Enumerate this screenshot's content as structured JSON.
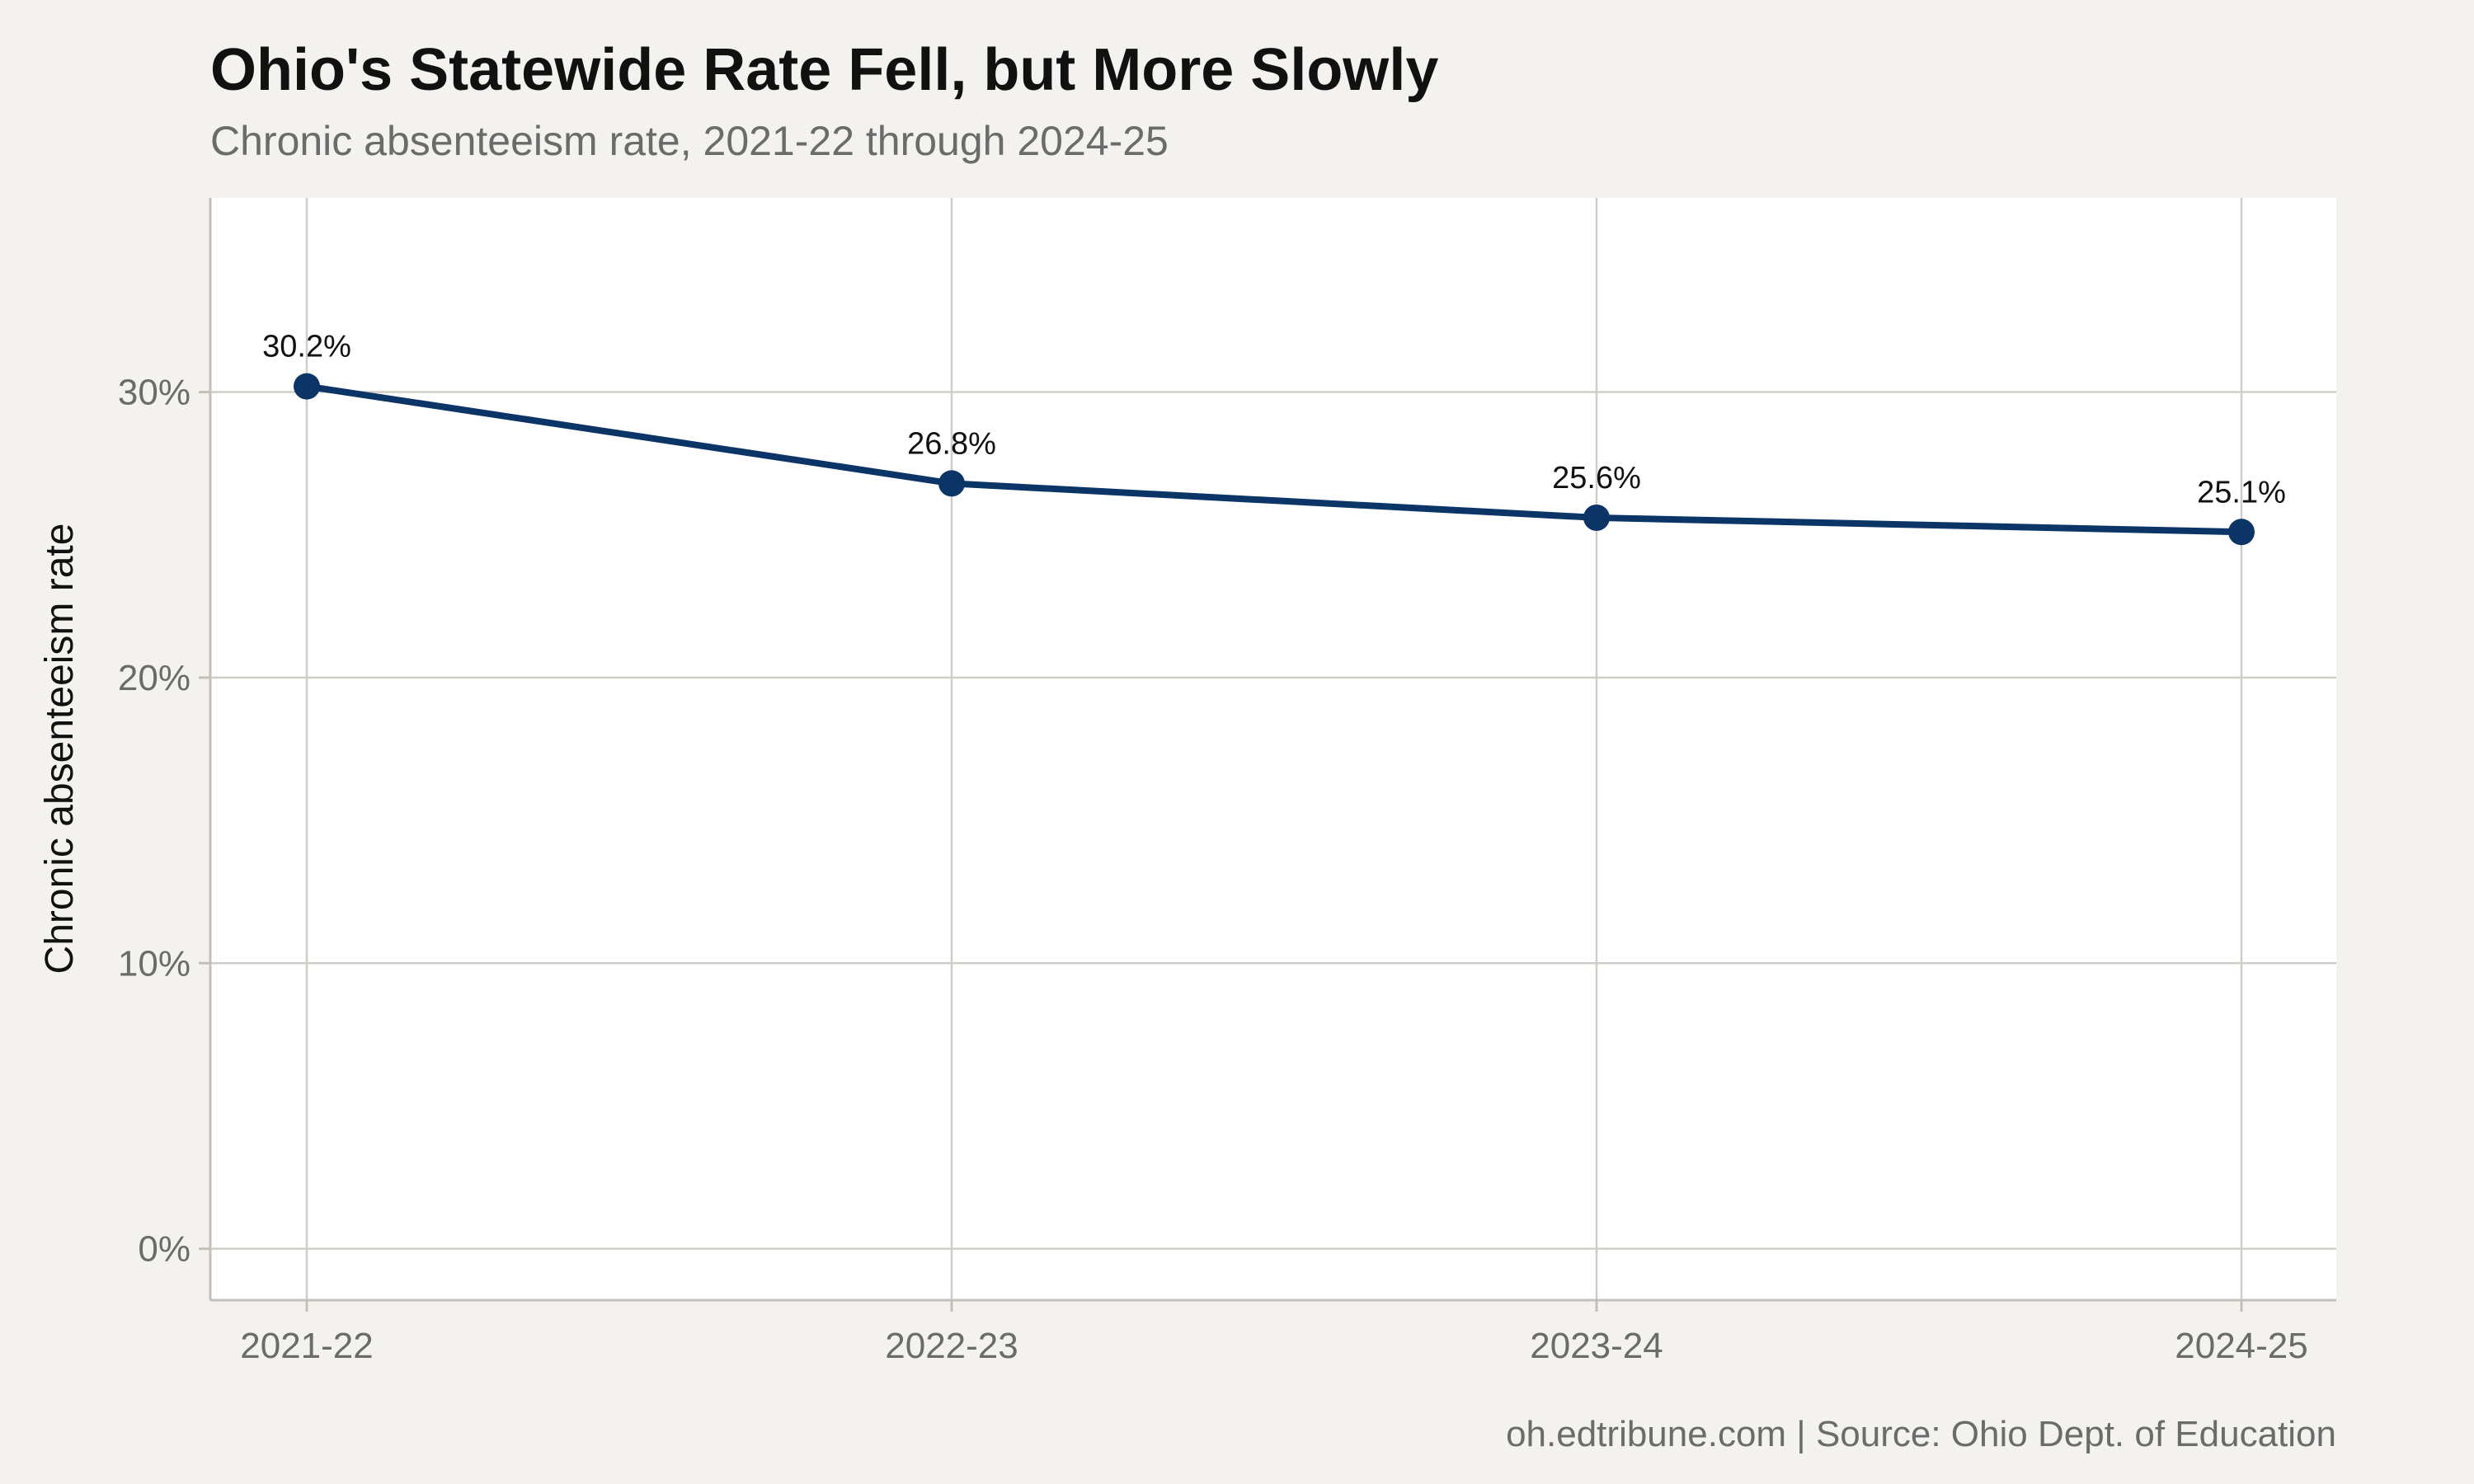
{
  "chart_data": {
    "type": "line",
    "title": "Ohio's Statewide Rate Fell, but More Slowly",
    "subtitle": "Chronic absenteeism rate, 2021-22 through 2024-25",
    "caption": "oh.edtribune.com | Source: Ohio Dept. of Education",
    "xlabel": "",
    "ylabel": "Chronic absenteeism rate",
    "categories": [
      "2021-22",
      "2022-23",
      "2023-24",
      "2024-25"
    ],
    "values": [
      30.2,
      26.8,
      25.6,
      25.1
    ],
    "data_labels": [
      "30.2%",
      "26.8%",
      "25.6%",
      "25.1%"
    ],
    "ylim": [
      -1.8,
      36.8
    ],
    "yticks": [
      0,
      10,
      20,
      30
    ],
    "ytick_labels": [
      "0%",
      "10%",
      "20%",
      "30%"
    ],
    "grid": true,
    "legend": "none",
    "colors": {
      "line": "#0b3566",
      "background": "#f4f2ee",
      "panel": "#ffffff",
      "grid": "#cfcdc6"
    }
  }
}
